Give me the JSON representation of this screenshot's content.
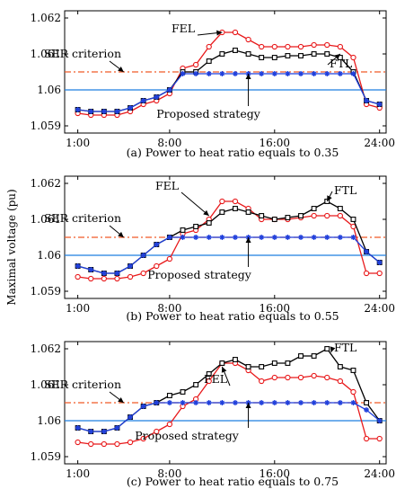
{
  "figure": {
    "ylabel": "Maximal voltage (pu)",
    "colors": {
      "FEL": "#e8191b",
      "FTL": "#000000",
      "Proposed": "#1f3fdc",
      "SER": "#f05a28",
      "baseline": "#1f7fe0"
    }
  },
  "chart_data": [
    {
      "type": "line",
      "caption": "(a) Power to heat ratio equals to 0.35",
      "xlabel": "",
      "ylabel": "Maximal voltage (pu)",
      "x": [
        1,
        2,
        3,
        4,
        5,
        6,
        7,
        8,
        9,
        10,
        11,
        12,
        13,
        14,
        15,
        16,
        17,
        18,
        19,
        20,
        21,
        22,
        23,
        24
      ],
      "xticks": [
        "1:00",
        "8:00",
        "16:00",
        "24:00"
      ],
      "xtick_values": [
        1,
        8,
        16,
        24
      ],
      "yticks": [
        "1.059",
        "1.06",
        "1.061",
        "1.062"
      ],
      "ytick_values": [
        1.059,
        1.06,
        1.061,
        1.062
      ],
      "ylim": [
        1.0588,
        1.0622
      ],
      "xlim": [
        0,
        24.5
      ],
      "series": [
        {
          "name": "FEL",
          "key": "FEL",
          "marker": "circle",
          "values": [
            1.05935,
            1.0593,
            1.0593,
            1.0593,
            1.0594,
            1.0596,
            1.0597,
            1.0599,
            1.0606,
            1.0607,
            1.0612,
            1.0616,
            1.0616,
            1.0614,
            1.0612,
            1.0612,
            1.0612,
            1.0612,
            1.06125,
            1.06125,
            1.0612,
            1.0609,
            1.0596,
            1.0595
          ]
        },
        {
          "name": "FTL",
          "key": "FTL",
          "marker": "square",
          "values": [
            1.05945,
            1.0594,
            1.0594,
            1.0594,
            1.0595,
            1.0597,
            1.0598,
            1.06,
            1.0605,
            1.0605,
            1.0608,
            1.061,
            1.0611,
            1.061,
            1.0609,
            1.0609,
            1.06095,
            1.06095,
            1.061,
            1.061,
            1.0609,
            1.0605,
            1.0597,
            1.0596
          ]
        },
        {
          "name": "Proposed strategy",
          "key": "Proposed",
          "marker": "star",
          "values": [
            1.05945,
            1.0594,
            1.0594,
            1.0594,
            1.0595,
            1.0597,
            1.0598,
            1.06,
            1.06045,
            1.06045,
            1.06045,
            1.06045,
            1.06045,
            1.06045,
            1.06045,
            1.06045,
            1.06045,
            1.06045,
            1.06045,
            1.06045,
            1.06045,
            1.06045,
            1.0597,
            1.0596
          ]
        }
      ],
      "reference_lines": [
        {
          "name": "SER criterion",
          "key": "SER",
          "style": "dashdot",
          "value": 1.0605
        },
        {
          "name": "",
          "key": "baseline",
          "style": "solid",
          "value": 1.06
        }
      ],
      "labels": {
        "FEL": "FEL",
        "FTL": "FTL",
        "SER": "SER criterion",
        "Proposed": "Proposed strategy"
      }
    },
    {
      "type": "line",
      "caption": "(b) Power to heat ratio equals to 0.55",
      "xlabel": "",
      "ylabel": "Maximal voltage (pu)",
      "x": [
        1,
        2,
        3,
        4,
        5,
        6,
        7,
        8,
        9,
        10,
        11,
        12,
        13,
        14,
        15,
        16,
        17,
        18,
        19,
        20,
        21,
        22,
        23,
        24
      ],
      "xticks": [
        "1:00",
        "8:00",
        "16:00",
        "24:00"
      ],
      "xtick_values": [
        1,
        8,
        16,
        24
      ],
      "yticks": [
        "1.059",
        "1.06",
        "1.061",
        "1.062"
      ],
      "ytick_values": [
        1.059,
        1.06,
        1.061,
        1.062
      ],
      "ylim": [
        1.0588,
        1.0622
      ],
      "xlim": [
        0,
        24.5
      ],
      "series": [
        {
          "name": "FEL",
          "key": "FEL",
          "marker": "circle",
          "values": [
            1.0594,
            1.05935,
            1.05935,
            1.05935,
            1.0594,
            1.0595,
            1.0597,
            1.0599,
            1.0606,
            1.0607,
            1.061,
            1.0615,
            1.0615,
            1.0613,
            1.061,
            1.061,
            1.061,
            1.06105,
            1.0611,
            1.0611,
            1.0611,
            1.0608,
            1.0595,
            1.0595
          ]
        },
        {
          "name": "FTL",
          "key": "FTL",
          "marker": "square",
          "values": [
            1.0597,
            1.0596,
            1.0595,
            1.0595,
            1.0597,
            1.06,
            1.0603,
            1.0605,
            1.0607,
            1.0608,
            1.0609,
            1.0612,
            1.0613,
            1.0612,
            1.0611,
            1.061,
            1.06105,
            1.0611,
            1.0613,
            1.0615,
            1.0613,
            1.061,
            1.0601,
            1.0598
          ]
        },
        {
          "name": "Proposed strategy",
          "key": "Proposed",
          "marker": "star",
          "values": [
            1.0597,
            1.0596,
            1.0595,
            1.0595,
            1.0597,
            1.06,
            1.0603,
            1.0605,
            1.0605,
            1.0605,
            1.0605,
            1.0605,
            1.0605,
            1.0605,
            1.0605,
            1.0605,
            1.0605,
            1.0605,
            1.0605,
            1.0605,
            1.0605,
            1.0605,
            1.0601,
            1.0598
          ]
        }
      ],
      "reference_lines": [
        {
          "name": "SER criterion",
          "key": "SER",
          "style": "dashdot",
          "value": 1.0605
        },
        {
          "name": "",
          "key": "baseline",
          "style": "solid",
          "value": 1.06
        }
      ],
      "labels": {
        "FEL": "FEL",
        "FTL": "FTL",
        "SER": "SER criterion",
        "Proposed": "Proposed strategy"
      }
    },
    {
      "type": "line",
      "caption": "(c) Power to heat ratio equals to 0.75",
      "xlabel": "",
      "ylabel": "Maximal voltage (pu)",
      "x": [
        1,
        2,
        3,
        4,
        5,
        6,
        7,
        8,
        9,
        10,
        11,
        12,
        13,
        14,
        15,
        16,
        17,
        18,
        19,
        20,
        21,
        22,
        23,
        24
      ],
      "xticks": [
        "1:00",
        "8:00",
        "16:00",
        "24:00"
      ],
      "xtick_values": [
        1,
        8,
        16,
        24
      ],
      "yticks": [
        "1.059",
        "1.06",
        "1.061",
        "1.062"
      ],
      "ytick_values": [
        1.059,
        1.06,
        1.061,
        1.062
      ],
      "ylim": [
        1.0588,
        1.0622
      ],
      "xlim": [
        0,
        24.5
      ],
      "series": [
        {
          "name": "FEL",
          "key": "FEL",
          "marker": "circle",
          "values": [
            1.0594,
            1.05935,
            1.05935,
            1.05935,
            1.0594,
            1.0595,
            1.0597,
            1.0599,
            1.0604,
            1.0606,
            1.0611,
            1.0616,
            1.0616,
            1.0614,
            1.0611,
            1.0612,
            1.0612,
            1.0612,
            1.06125,
            1.0612,
            1.0611,
            1.0608,
            1.0595,
            1.0595
          ]
        },
        {
          "name": "FTL",
          "key": "FTL",
          "marker": "square",
          "values": [
            1.0598,
            1.0597,
            1.0597,
            1.0598,
            1.0601,
            1.0604,
            1.0605,
            1.0607,
            1.0608,
            1.061,
            1.0613,
            1.0616,
            1.0617,
            1.0615,
            1.0615,
            1.0616,
            1.0616,
            1.0618,
            1.0618,
            1.062,
            1.0615,
            1.0614,
            1.0605,
            1.06
          ]
        },
        {
          "name": "Proposed strategy",
          "key": "Proposed",
          "marker": "star",
          "values": [
            1.0598,
            1.0597,
            1.0597,
            1.0598,
            1.0601,
            1.0604,
            1.0605,
            1.0605,
            1.0605,
            1.0605,
            1.0605,
            1.0605,
            1.0605,
            1.0605,
            1.0605,
            1.0605,
            1.0605,
            1.0605,
            1.0605,
            1.0605,
            1.0605,
            1.0605,
            1.0603,
            1.06
          ]
        }
      ],
      "reference_lines": [
        {
          "name": "SER criterion",
          "key": "SER",
          "style": "dashdot",
          "value": 1.0605
        },
        {
          "name": "",
          "key": "baseline",
          "style": "solid",
          "value": 1.06
        }
      ],
      "labels": {
        "FEL": "FEL",
        "FTL": "FTL",
        "SER": "SER criterion",
        "Proposed": "Proposed strategy"
      }
    }
  ]
}
